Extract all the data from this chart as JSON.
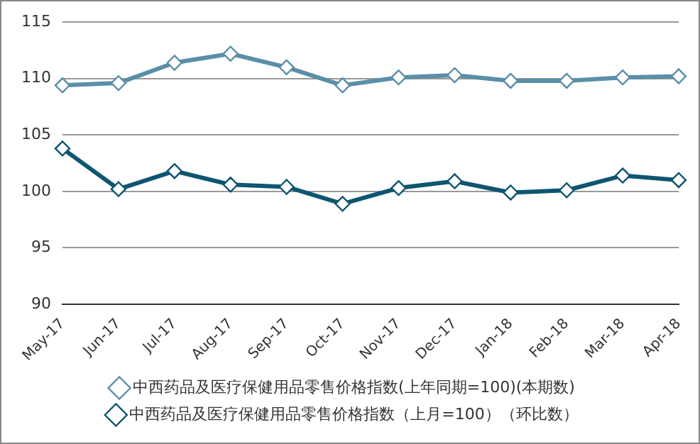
{
  "chart_data": {
    "type": "line",
    "categories": [
      "May-17",
      "Jun-17",
      "Jul-17",
      "Aug-17",
      "Sep-17",
      "Oct-17",
      "Nov-17",
      "Dec-17",
      "Jan-18",
      "Feb-18",
      "Mar-18",
      "Apr-18"
    ],
    "series": [
      {
        "name": "中西药品及医疗保健用品零售价格指数(上年同期=100)(本期数)",
        "color": "#5b8fa8",
        "values": [
          109.4,
          109.6,
          111.4,
          112.2,
          111.0,
          109.4,
          110.1,
          110.3,
          109.8,
          109.8,
          110.1,
          110.2
        ]
      },
      {
        "name": "中西药品及医疗保健用品零售价格指数（上月=100）（环比数）",
        "color": "#0e5670",
        "values": [
          103.8,
          100.2,
          101.8,
          100.6,
          100.4,
          98.9,
          100.3,
          100.9,
          99.9,
          100.1,
          101.4,
          101.0
        ]
      }
    ],
    "ylim": [
      90,
      115
    ],
    "yticks": [
      90,
      95,
      100,
      105,
      110,
      115
    ],
    "grid": "y",
    "legend": "bottom",
    "marker": "diamond",
    "line_style": "solid"
  }
}
